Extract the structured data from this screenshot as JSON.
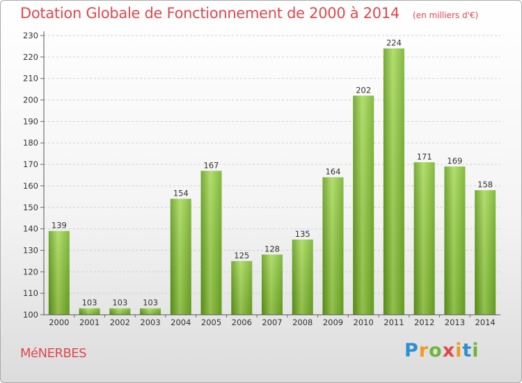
{
  "chart_data": {
    "type": "bar",
    "title": "Dotation Globale de Fonctionnement de 2000 à 2014",
    "subtitle": "(en milliers d'€)",
    "categories": [
      "2000",
      "2001",
      "2002",
      "2003",
      "2004",
      "2005",
      "2006",
      "2007",
      "2008",
      "2009",
      "2010",
      "2011",
      "2012",
      "2013",
      "2014"
    ],
    "values": [
      139,
      103,
      103,
      103,
      154,
      167,
      125,
      128,
      135,
      164,
      202,
      224,
      171,
      169,
      158
    ],
    "ylim": [
      100,
      230
    ],
    "yticks": [
      100,
      110,
      120,
      130,
      140,
      150,
      160,
      170,
      180,
      190,
      200,
      210,
      220,
      230
    ],
    "grid": true,
    "bar_color": "#7dbb2e",
    "bar_color_light": "#a6d957",
    "bar_color_dark": "#5f9a18"
  },
  "commune": "MéNERBES",
  "logo": {
    "letters": [
      "P",
      "r",
      "o",
      "x",
      "i",
      "t",
      "i"
    ],
    "colors": [
      "#2b8fd6",
      "#f29a1d",
      "#6fb43b",
      "#e0474c",
      "#f29a1d",
      "#2b8fd6",
      "#6fb43b"
    ]
  },
  "colors": {
    "title": "#e0474c"
  }
}
